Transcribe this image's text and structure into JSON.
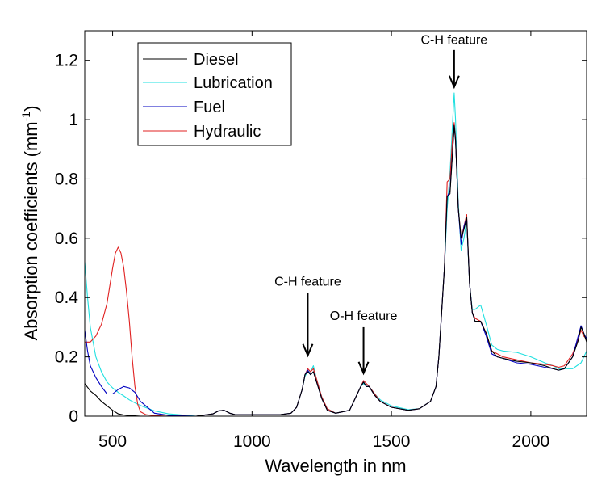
{
  "chart_data": {
    "type": "line",
    "xlabel": "Wavelength in nm",
    "ylabel": "Absorption coefficients (mm",
    "ylabel_superscript": "-1",
    "ylabel_suffix": ")",
    "xlim": [
      400,
      2200
    ],
    "ylim": [
      0,
      1.3
    ],
    "xticks": [
      500,
      1000,
      1500,
      2000
    ],
    "xtick_labels": [
      "500",
      "1000",
      "1500",
      "2000"
    ],
    "yticks": [
      0,
      0.2,
      0.4,
      0.6,
      0.8,
      1,
      1.2
    ],
    "ytick_labels": [
      "0",
      "0.2",
      "0.4",
      "0.6",
      "0.8",
      "1",
      "1.2"
    ],
    "legend_position": "top-left",
    "annotations": [
      {
        "text": "C-H feature",
        "x": 1200,
        "y_text": 0.44,
        "y_arrow_start": 0.415,
        "y_arrow_end": 0.205
      },
      {
        "text": "O-H feature",
        "x": 1400,
        "y_text": 0.325,
        "y_arrow_start": 0.3,
        "y_arrow_end": 0.145
      },
      {
        "text": "C-H feature",
        "x": 1725,
        "y_text": 1.255,
        "y_arrow_start": 1.235,
        "y_arrow_end": 1.11
      }
    ],
    "series": [
      {
        "name": "Diesel",
        "color": "#000000",
        "x": [
          400,
          420,
          440,
          460,
          480,
          500,
          520,
          540,
          560,
          580,
          600,
          650,
          700,
          800,
          860,
          880,
          900,
          920,
          940,
          1000,
          1100,
          1140,
          1160,
          1180,
          1190,
          1200,
          1210,
          1220,
          1230,
          1250,
          1270,
          1300,
          1350,
          1370,
          1390,
          1400,
          1410,
          1420,
          1440,
          1460,
          1500,
          1560,
          1600,
          1640,
          1660,
          1670,
          1690,
          1700,
          1710,
          1720,
          1725,
          1730,
          1740,
          1750,
          1760,
          1770,
          1780,
          1790,
          1800,
          1820,
          1840,
          1860,
          1880,
          1900,
          1950,
          2000,
          2050,
          2080,
          2100,
          2120,
          2150,
          2170,
          2180,
          2190,
          2200
        ],
        "y": [
          0.11,
          0.085,
          0.07,
          0.05,
          0.035,
          0.02,
          0.008,
          0.004,
          0.002,
          0.001,
          0.0,
          0.0,
          0.0,
          0.0,
          0.008,
          0.018,
          0.02,
          0.01,
          0.005,
          0.005,
          0.005,
          0.01,
          0.03,
          0.09,
          0.14,
          0.15,
          0.14,
          0.15,
          0.12,
          0.06,
          0.02,
          0.01,
          0.02,
          0.06,
          0.1,
          0.115,
          0.1,
          0.1,
          0.07,
          0.05,
          0.03,
          0.02,
          0.025,
          0.05,
          0.1,
          0.2,
          0.5,
          0.74,
          0.75,
          0.9,
          0.98,
          0.93,
          0.7,
          0.6,
          0.63,
          0.67,
          0.45,
          0.35,
          0.32,
          0.32,
          0.28,
          0.22,
          0.2,
          0.195,
          0.185,
          0.18,
          0.17,
          0.16,
          0.155,
          0.16,
          0.2,
          0.255,
          0.3,
          0.28,
          0.25
        ]
      },
      {
        "name": "Lubrication",
        "color": "#20e0e0",
        "x": [
          400,
          410,
          420,
          440,
          460,
          480,
          500,
          520,
          540,
          560,
          580,
          600,
          650,
          700,
          800,
          860,
          880,
          900,
          920,
          940,
          1000,
          1100,
          1140,
          1160,
          1180,
          1190,
          1200,
          1210,
          1220,
          1230,
          1250,
          1270,
          1300,
          1350,
          1370,
          1390,
          1400,
          1410,
          1420,
          1440,
          1460,
          1500,
          1560,
          1600,
          1640,
          1660,
          1670,
          1690,
          1700,
          1710,
          1720,
          1725,
          1730,
          1740,
          1750,
          1760,
          1770,
          1780,
          1790,
          1800,
          1820,
          1840,
          1860,
          1880,
          1900,
          1950,
          2000,
          2050,
          2080,
          2100,
          2120,
          2150,
          2180,
          2200
        ],
        "y": [
          0.52,
          0.4,
          0.3,
          0.2,
          0.15,
          0.115,
          0.095,
          0.08,
          0.068,
          0.055,
          0.045,
          0.036,
          0.018,
          0.008,
          0.0,
          0.008,
          0.018,
          0.02,
          0.01,
          0.005,
          0.005,
          0.005,
          0.01,
          0.03,
          0.09,
          0.135,
          0.15,
          0.15,
          0.17,
          0.13,
          0.065,
          0.025,
          0.01,
          0.02,
          0.06,
          0.1,
          0.11,
          0.1,
          0.1,
          0.075,
          0.055,
          0.035,
          0.022,
          0.025,
          0.05,
          0.1,
          0.2,
          0.5,
          0.7,
          0.82,
          1.0,
          1.09,
          1.0,
          0.72,
          0.56,
          0.6,
          0.66,
          0.45,
          0.36,
          0.36,
          0.375,
          0.31,
          0.24,
          0.225,
          0.22,
          0.215,
          0.2,
          0.18,
          0.17,
          0.16,
          0.16,
          0.16,
          0.18,
          0.22
        ]
      },
      {
        "name": "Fuel",
        "color": "#0000c0",
        "x": [
          400,
          410,
          420,
          440,
          460,
          480,
          500,
          520,
          540,
          560,
          580,
          600,
          650,
          700,
          800,
          860,
          880,
          900,
          920,
          940,
          1000,
          1100,
          1140,
          1160,
          1180,
          1190,
          1200,
          1210,
          1220,
          1230,
          1250,
          1270,
          1300,
          1350,
          1370,
          1390,
          1400,
          1410,
          1420,
          1440,
          1460,
          1500,
          1560,
          1600,
          1640,
          1660,
          1670,
          1690,
          1700,
          1710,
          1720,
          1725,
          1730,
          1740,
          1750,
          1760,
          1770,
          1780,
          1790,
          1800,
          1820,
          1840,
          1860,
          1880,
          1900,
          1950,
          2000,
          2050,
          2080,
          2100,
          2120,
          2150,
          2170,
          2180,
          2190,
          2200
        ],
        "y": [
          0.29,
          0.22,
          0.17,
          0.13,
          0.1,
          0.075,
          0.075,
          0.09,
          0.1,
          0.095,
          0.08,
          0.05,
          0.01,
          0.003,
          0.0,
          0.008,
          0.018,
          0.02,
          0.01,
          0.005,
          0.005,
          0.005,
          0.01,
          0.03,
          0.09,
          0.14,
          0.155,
          0.14,
          0.15,
          0.12,
          0.06,
          0.02,
          0.01,
          0.02,
          0.06,
          0.1,
          0.115,
          0.1,
          0.1,
          0.07,
          0.05,
          0.03,
          0.02,
          0.025,
          0.05,
          0.1,
          0.2,
          0.5,
          0.74,
          0.76,
          0.9,
          0.98,
          0.93,
          0.7,
          0.58,
          0.64,
          0.67,
          0.45,
          0.35,
          0.32,
          0.32,
          0.27,
          0.21,
          0.2,
          0.195,
          0.18,
          0.175,
          0.165,
          0.16,
          0.155,
          0.16,
          0.2,
          0.27,
          0.305,
          0.28,
          0.26
        ]
      },
      {
        "name": "Hydraulic",
        "color": "#e02020",
        "x": [
          400,
          420,
          440,
          460,
          480,
          500,
          510,
          520,
          530,
          540,
          550,
          560,
          570,
          580,
          590,
          600,
          620,
          650,
          700,
          800,
          860,
          880,
          900,
          920,
          940,
          1000,
          1100,
          1140,
          1160,
          1180,
          1190,
          1200,
          1210,
          1220,
          1230,
          1250,
          1270,
          1300,
          1350,
          1370,
          1390,
          1400,
          1410,
          1420,
          1440,
          1460,
          1500,
          1560,
          1600,
          1640,
          1660,
          1670,
          1690,
          1700,
          1710,
          1720,
          1725,
          1730,
          1740,
          1750,
          1760,
          1770,
          1780,
          1790,
          1800,
          1820,
          1840,
          1860,
          1880,
          1900,
          1950,
          2000,
          2050,
          2080,
          2100,
          2120,
          2150,
          2170,
          2180,
          2190,
          2200
        ],
        "y": [
          0.25,
          0.25,
          0.27,
          0.31,
          0.38,
          0.5,
          0.55,
          0.57,
          0.55,
          0.5,
          0.42,
          0.32,
          0.2,
          0.1,
          0.04,
          0.015,
          0.005,
          0.002,
          0.0,
          0.0,
          0.008,
          0.018,
          0.02,
          0.01,
          0.005,
          0.005,
          0.005,
          0.01,
          0.03,
          0.09,
          0.14,
          0.16,
          0.15,
          0.16,
          0.13,
          0.065,
          0.025,
          0.01,
          0.02,
          0.06,
          0.1,
          0.12,
          0.11,
          0.1,
          0.075,
          0.05,
          0.03,
          0.02,
          0.025,
          0.05,
          0.1,
          0.2,
          0.5,
          0.79,
          0.8,
          0.95,
          0.99,
          0.94,
          0.7,
          0.6,
          0.64,
          0.68,
          0.45,
          0.35,
          0.33,
          0.32,
          0.28,
          0.22,
          0.21,
          0.2,
          0.19,
          0.18,
          0.175,
          0.17,
          0.165,
          0.17,
          0.21,
          0.26,
          0.29,
          0.27,
          0.26
        ]
      }
    ]
  }
}
